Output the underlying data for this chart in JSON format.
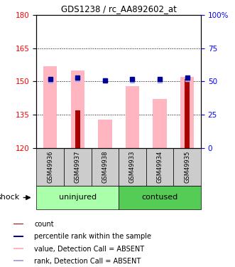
{
  "title": "GDS1238 / rc_AA892602_at",
  "samples": [
    "GSM49936",
    "GSM49937",
    "GSM49938",
    "GSM49933",
    "GSM49934",
    "GSM49935"
  ],
  "ylim_left": [
    120,
    180
  ],
  "ylim_right": [
    0,
    100
  ],
  "yticks_left": [
    120,
    135,
    150,
    165,
    180
  ],
  "yticks_right": [
    0,
    25,
    50,
    75,
    100
  ],
  "ytick_labels_right": [
    "0",
    "25",
    "50",
    "75",
    "100%"
  ],
  "bar_color_red": "#AA0000",
  "bar_color_pink": "#FFB6C1",
  "dot_color_blue": "#000099",
  "dot_color_lightblue": "#AAAADD",
  "count_values": [
    120,
    137,
    120,
    120,
    120,
    151
  ],
  "pink_bar_values": [
    157,
    155,
    133,
    148,
    142,
    152
  ],
  "blue_dot_values": [
    52,
    53,
    51,
    52,
    52,
    53
  ],
  "lightblue_dot_values": [
    51,
    52,
    51,
    51,
    51,
    52
  ],
  "group_spans": [
    {
      "label": "uninjured",
      "start": 0,
      "end": 2,
      "color": "#AAFFAA"
    },
    {
      "label": "contused",
      "start": 3,
      "end": 5,
      "color": "#55CC55"
    }
  ],
  "legend_items": [
    {
      "label": "count",
      "color": "#AA0000"
    },
    {
      "label": "percentile rank within the sample",
      "color": "#000099"
    },
    {
      "label": "value, Detection Call = ABSENT",
      "color": "#FFB6C1"
    },
    {
      "label": "rank, Detection Call = ABSENT",
      "color": "#AAAADD"
    }
  ],
  "shock_label": "shock"
}
